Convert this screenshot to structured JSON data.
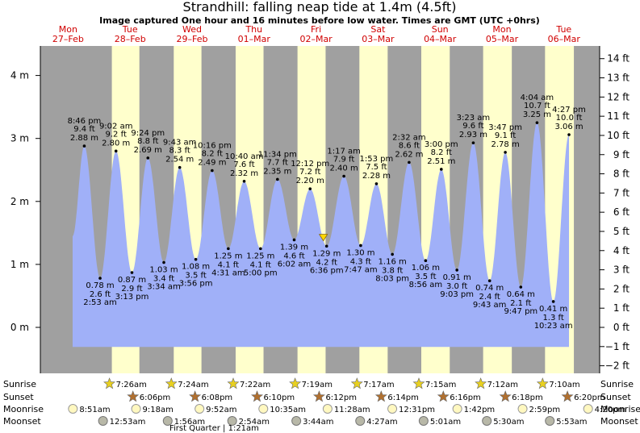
{
  "title": "Strandhill: falling  neap tide at 1.4m (4.5ft)",
  "subtitle": "Image captured One hour and 16 minutes before low water. Times are GMT (UTC +0hrs)",
  "days": [
    {
      "dow": "Mon",
      "date": "27–Feb"
    },
    {
      "dow": "Tue",
      "date": "28–Feb"
    },
    {
      "dow": "Wed",
      "date": "29–Feb"
    },
    {
      "dow": "Thu",
      "date": "01–Mar"
    },
    {
      "dow": "Fri",
      "date": "02–Mar"
    },
    {
      "dow": "Sat",
      "date": "03–Mar"
    },
    {
      "dow": "Sun",
      "date": "04–Mar"
    },
    {
      "dow": "Mon",
      "date": "05–Mar"
    },
    {
      "dow": "Tue",
      "date": "06–Mar"
    }
  ],
  "rows": {
    "sunrise_label": "Sunrise",
    "sunset_label": "Sunset",
    "moonrise_label": "Moonrise",
    "moonset_label": "Moonset",
    "sunrise": [
      "7:26am",
      "7:24am",
      "7:22am",
      "7:19am",
      "7:17am",
      "7:15am",
      "7:12am",
      "7:10am"
    ],
    "sunset": [
      "6:06pm",
      "6:08pm",
      "6:10pm",
      "6:12pm",
      "6:14pm",
      "6:16pm",
      "6:18pm",
      "6:20pm"
    ],
    "moonrise": [
      "8:51am",
      "9:18am",
      "9:52am",
      "10:35am",
      "11:28am",
      "12:31pm",
      "1:42pm",
      "2:59pm",
      "4:20pm"
    ],
    "moonset": [
      "12:53am",
      "1:56am",
      "2:54am",
      "3:44am",
      "4:27am",
      "5:01am",
      "5:30am",
      "5:53am"
    ],
    "phase_note": "First Quarter | 1:21am"
  },
  "colors": {
    "day": "#ffffcc",
    "night": "#a0a0a0",
    "water": "#a0b0f8",
    "marker": "#ffd700"
  },
  "chart_data": {
    "type": "area",
    "title": "Strandhill: falling  neap tide at 1.4m (4.5ft)",
    "y_left_unit": "m",
    "y_right_unit": "ft",
    "ylim_m": [
      -0.6,
      4.45
    ],
    "left_ticks": [
      "4 m",
      "3 m",
      "2 m",
      "1 m",
      "0 m"
    ],
    "right_ticks": [
      "14 ft",
      "13 ft",
      "12 ft",
      "11 ft",
      "10 ft",
      "9 ft",
      "8 ft",
      "7 ft",
      "6 ft",
      "5 ft",
      "4 ft",
      "3 ft",
      "2 ft",
      "1 ft",
      "0 ft",
      "−1 ft",
      "−2 ft"
    ],
    "tides": [
      {
        "day": "27-Feb",
        "time": "8:46 pm",
        "m": "2.88 m",
        "ft": "9.4 ft",
        "value": 2.88,
        "type": "high"
      },
      {
        "day": "28-Feb",
        "time": "2:53 am",
        "m": "0.78 m",
        "ft": "2.6 ft",
        "value": 0.78,
        "type": "low"
      },
      {
        "day": "28-Feb",
        "time": "9:02 am",
        "m": "2.80 m",
        "ft": "9.2 ft",
        "value": 2.8,
        "type": "high"
      },
      {
        "day": "28-Feb",
        "time": "3:13 pm",
        "m": "0.87 m",
        "ft": "2.9 ft",
        "value": 0.87,
        "type": "low"
      },
      {
        "day": "28-Feb",
        "time": "9:24 pm",
        "m": "2.69 m",
        "ft": "8.8 ft",
        "value": 2.69,
        "type": "high"
      },
      {
        "day": "29-Feb",
        "time": "3:34 am",
        "m": "1.03 m",
        "ft": "3.4 ft",
        "value": 1.03,
        "type": "low"
      },
      {
        "day": "29-Feb",
        "time": "9:43 am",
        "m": "2.54 m",
        "ft": "8.3 ft",
        "value": 2.54,
        "type": "high"
      },
      {
        "day": "29-Feb",
        "time": "3:56 pm",
        "m": "1.08 m",
        "ft": "3.5 ft",
        "value": 1.08,
        "type": "low"
      },
      {
        "day": "29-Feb",
        "time": "10:16 pm",
        "m": "2.49 m",
        "ft": "8.2 ft",
        "value": 2.49,
        "type": "high"
      },
      {
        "day": "01-Mar",
        "time": "4:31 am",
        "m": "1.25 m",
        "ft": "4.1 ft",
        "value": 1.25,
        "type": "low"
      },
      {
        "day": "01-Mar",
        "time": "10:40 am",
        "m": "2.32 m",
        "ft": "7.6 ft",
        "value": 2.32,
        "type": "high"
      },
      {
        "day": "01-Mar",
        "time": "5:00 pm",
        "m": "1.25 m",
        "ft": "4.1 ft",
        "value": 1.25,
        "type": "low"
      },
      {
        "day": "01-Mar",
        "time": "11:34 pm",
        "m": "2.35 m",
        "ft": "7.7 ft",
        "value": 2.35,
        "type": "high"
      },
      {
        "day": "02-Mar",
        "time": "6:02 am",
        "m": "1.39 m",
        "ft": "4.6 ft",
        "value": 1.39,
        "type": "low"
      },
      {
        "day": "02-Mar",
        "time": "12:12 pm",
        "m": "2.20 m",
        "ft": "7.2 ft",
        "value": 2.2,
        "type": "high"
      },
      {
        "day": "02-Mar",
        "time": "6:36 pm",
        "m": "1.29 m",
        "ft": "4.2 ft",
        "value": 1.29,
        "type": "low"
      },
      {
        "day": "03-Mar",
        "time": "1:17 am",
        "m": "2.40 m",
        "ft": "7.9 ft",
        "value": 2.4,
        "type": "high"
      },
      {
        "day": "03-Mar",
        "time": "7:47 am",
        "m": "1.30 m",
        "ft": "4.3 ft",
        "value": 1.3,
        "type": "low"
      },
      {
        "day": "03-Mar",
        "time": "1:53 pm",
        "m": "2.28 m",
        "ft": "7.5 ft",
        "value": 2.28,
        "type": "high"
      },
      {
        "day": "03-Mar",
        "time": "8:03 pm",
        "m": "1.16 m",
        "ft": "3.8 ft",
        "value": 1.16,
        "type": "low"
      },
      {
        "day": "04-Mar",
        "time": "2:32 am",
        "m": "2.62 m",
        "ft": "8.6 ft",
        "value": 2.62,
        "type": "high"
      },
      {
        "day": "04-Mar",
        "time": "8:56 am",
        "m": "1.06 m",
        "ft": "3.5 ft",
        "value": 1.06,
        "type": "low"
      },
      {
        "day": "04-Mar",
        "time": "3:00 pm",
        "m": "2.51 m",
        "ft": "8.2 ft",
        "value": 2.51,
        "type": "high"
      },
      {
        "day": "04-Mar",
        "time": "9:03 pm",
        "m": "0.91 m",
        "ft": "3.0 ft",
        "value": 0.91,
        "type": "low"
      },
      {
        "day": "05-Mar",
        "time": "3:23 am",
        "m": "2.93 m",
        "ft": "9.6 ft",
        "value": 2.93,
        "type": "high"
      },
      {
        "day": "05-Mar",
        "time": "9:43 am",
        "m": "0.74 m",
        "ft": "2.4 ft",
        "value": 0.74,
        "type": "low"
      },
      {
        "day": "05-Mar",
        "time": "3:47 pm",
        "m": "2.78 m",
        "ft": "9.1 ft",
        "value": 2.78,
        "type": "high"
      },
      {
        "day": "05-Mar",
        "time": "9:47 pm",
        "m": "0.64 m",
        "ft": "2.1 ft",
        "value": 0.64,
        "type": "low"
      },
      {
        "day": "06-Mar",
        "time": "4:04 am",
        "m": "3.25 m",
        "ft": "10.7 ft",
        "value": 3.25,
        "type": "high"
      },
      {
        "day": "06-Mar",
        "time": "10:23 am",
        "m": "0.41 m",
        "ft": "1.3 ft",
        "value": 0.41,
        "type": "low"
      },
      {
        "day": "06-Mar",
        "time": "4:27 pm",
        "m": "3.06 m",
        "ft": "10.0 ft",
        "value": 3.06,
        "type": "high"
      }
    ],
    "current": {
      "day": "02-Mar",
      "time": "5:20 pm",
      "value": 1.4,
      "state": "falling"
    }
  }
}
